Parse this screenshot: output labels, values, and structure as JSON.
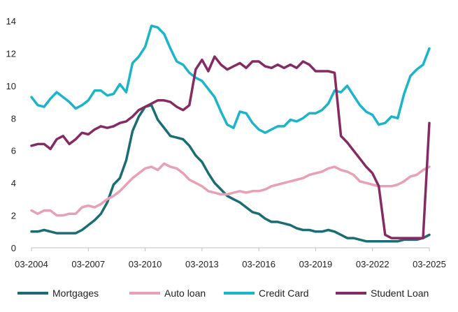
{
  "chart_data": {
    "type": "line",
    "title": "",
    "xlabel": "",
    "ylabel": "",
    "ylim": [
      0,
      14
    ],
    "y_ticks": [
      "0",
      "2",
      "4",
      "6",
      "8",
      "10",
      "12",
      "14"
    ],
    "x_ticks": [
      "03-2004",
      "03-2007",
      "03-2010",
      "03-2013",
      "03-2016",
      "03-2019",
      "03-2022",
      "03-2025"
    ],
    "x_start": "03-2004",
    "x_end": "03-2025",
    "grid": false,
    "legend_position": "bottom",
    "series": [
      {
        "name": "Mortgages",
        "color": "#1a6e73",
        "values": [
          1.0,
          1.0,
          1.1,
          1.0,
          0.9,
          0.9,
          0.9,
          0.9,
          1.1,
          1.4,
          1.7,
          2.1,
          2.8,
          3.9,
          4.3,
          5.4,
          7.2,
          8.1,
          8.7,
          8.8,
          7.9,
          7.4,
          6.9,
          6.8,
          6.7,
          6.3,
          5.7,
          5.3,
          4.6,
          4.0,
          3.6,
          3.2,
          3.0,
          2.8,
          2.5,
          2.2,
          2.1,
          1.8,
          1.6,
          1.6,
          1.5,
          1.4,
          1.2,
          1.1,
          1.1,
          1.0,
          1.0,
          1.1,
          1.0,
          0.8,
          0.6,
          0.6,
          0.5,
          0.4,
          0.4,
          0.4,
          0.4,
          0.4,
          0.4,
          0.5,
          0.5,
          0.5,
          0.6,
          0.8
        ]
      },
      {
        "name": "Auto loan",
        "color": "#e8a0b4",
        "values": [
          2.3,
          2.1,
          2.3,
          2.3,
          2.0,
          2.0,
          2.1,
          2.1,
          2.5,
          2.6,
          2.5,
          2.7,
          3.0,
          3.2,
          3.5,
          3.9,
          4.3,
          4.6,
          4.9,
          5.0,
          4.8,
          5.2,
          5.0,
          4.9,
          4.6,
          4.2,
          4.0,
          3.8,
          3.5,
          3.4,
          3.3,
          3.3,
          3.4,
          3.5,
          3.4,
          3.5,
          3.5,
          3.6,
          3.8,
          3.9,
          4.0,
          4.1,
          4.2,
          4.3,
          4.5,
          4.6,
          4.7,
          4.9,
          5.0,
          4.8,
          4.7,
          4.5,
          4.1,
          4.0,
          3.9,
          3.8,
          3.8,
          3.8,
          3.9,
          4.1,
          4.4,
          4.5,
          4.8,
          5.0
        ]
      },
      {
        "name": "Credit Card",
        "color": "#1ab5c8",
        "values": [
          9.3,
          8.8,
          8.7,
          9.2,
          9.6,
          9.3,
          9.0,
          8.6,
          8.8,
          9.1,
          9.7,
          9.7,
          9.4,
          9.5,
          10.1,
          9.6,
          11.4,
          11.8,
          12.4,
          13.7,
          13.6,
          13.2,
          12.3,
          11.5,
          11.3,
          10.8,
          10.5,
          10.3,
          9.8,
          9.3,
          8.4,
          7.6,
          7.4,
          8.4,
          8.3,
          7.7,
          7.3,
          7.1,
          7.3,
          7.5,
          7.5,
          7.9,
          7.8,
          8.0,
          8.3,
          8.3,
          8.5,
          8.9,
          9.7,
          9.6,
          10.0,
          9.4,
          8.8,
          8.4,
          8.2,
          7.6,
          7.7,
          8.1,
          8.0,
          9.5,
          10.6,
          11.0,
          11.3,
          12.3
        ]
      },
      {
        "name": "Student Loan",
        "color": "#862a63",
        "values": [
          6.3,
          6.4,
          6.4,
          6.1,
          6.7,
          6.9,
          6.4,
          6.7,
          7.1,
          7.0,
          7.3,
          7.5,
          7.4,
          7.5,
          7.7,
          7.8,
          8.1,
          8.5,
          8.7,
          8.9,
          9.1,
          9.1,
          9.0,
          8.7,
          8.5,
          8.8,
          11.0,
          11.6,
          10.9,
          11.8,
          11.3,
          11.0,
          11.2,
          11.4,
          11.1,
          11.5,
          11.5,
          11.2,
          11.1,
          11.3,
          11.1,
          11.3,
          11.1,
          11.5,
          11.3,
          10.9,
          10.9,
          10.9,
          10.8,
          6.9,
          6.5,
          6.0,
          5.5,
          5.0,
          4.6,
          3.8,
          0.8,
          0.6,
          0.6,
          0.6,
          0.6,
          0.6,
          0.6,
          7.7
        ]
      }
    ]
  }
}
